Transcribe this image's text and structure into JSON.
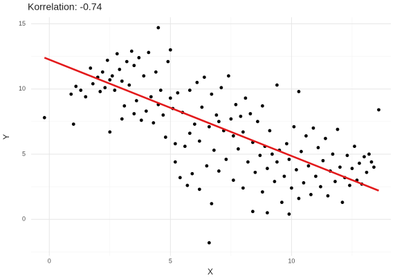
{
  "chart_data": {
    "type": "scatter",
    "title": "Korrelation:  -0.74",
    "xlabel": "X",
    "ylabel": "Y",
    "x": [
      0.9,
      1.0,
      1.1,
      1.3,
      1.5,
      1.7,
      1.8,
      2.0,
      2.1,
      2.2,
      2.3,
      2.4,
      2.5,
      2.5,
      2.6,
      2.7,
      2.8,
      2.9,
      3.0,
      3.0,
      3.1,
      3.2,
      3.3,
      3.4,
      3.5,
      3.5,
      3.6,
      3.7,
      3.8,
      3.9,
      4.0,
      4.1,
      4.2,
      4.3,
      4.4,
      4.5,
      4.5,
      4.6,
      4.7,
      4.8,
      4.9,
      5.0,
      5.0,
      5.1,
      5.2,
      5.2,
      5.3,
      5.4,
      5.5,
      5.6,
      5.7,
      5.8,
      5.8,
      5.9,
      6.0,
      6.1,
      6.2,
      6.2,
      6.3,
      6.4,
      6.5,
      6.6,
      6.6,
      6.7,
      6.7,
      6.8,
      6.9,
      7.0,
      7.0,
      7.1,
      7.2,
      7.3,
      7.4,
      7.5,
      7.6,
      7.6,
      7.7,
      7.8,
      7.9,
      8.0,
      8.0,
      8.1,
      8.2,
      8.3,
      8.4,
      8.4,
      8.5,
      8.6,
      8.7,
      8.8,
      8.8,
      8.9,
      9.0,
      9.0,
      9.1,
      9.2,
      9.3,
      9.4,
      9.4,
      9.5,
      9.6,
      9.7,
      9.8,
      9.9,
      9.9,
      10.0,
      10.1,
      10.2,
      10.3,
      10.3,
      10.4,
      10.5,
      10.6,
      10.7,
      10.8,
      10.9,
      11.0,
      11.1,
      11.2,
      11.3,
      11.4,
      11.5,
      11.6,
      11.7,
      11.8,
      11.9,
      12.0,
      12.1,
      12.2,
      12.3,
      12.4,
      12.5,
      12.6,
      12.7,
      12.8,
      12.9,
      13.0,
      13.1,
      13.2,
      13.3,
      13.4,
      13.6,
      -0.2
    ],
    "values": [
      9.6,
      7.3,
      10.2,
      9.9,
      9.4,
      11.6,
      10.4,
      10.9,
      9.8,
      11.3,
      10.1,
      12.2,
      10.7,
      6.7,
      11.0,
      9.9,
      12.7,
      11.5,
      10.6,
      7.7,
      8.7,
      12.1,
      10.3,
      12.9,
      11.8,
      8.1,
      9.1,
      12.4,
      7.6,
      11.0,
      8.3,
      12.8,
      9.4,
      7.4,
      11.3,
      14.7,
      8.8,
      9.9,
      8.0,
      6.3,
      12.1,
      13.0,
      9.3,
      8.5,
      5.8,
      4.4,
      9.7,
      3.2,
      8.2,
      5.6,
      2.6,
      6.6,
      9.9,
      3.5,
      7.3,
      10.5,
      2.3,
      6.0,
      8.6,
      10.9,
      4.1,
      -1.8,
      7.1,
      1.2,
      9.6,
      5.3,
      8.0,
      3.7,
      7.5,
      10.1,
      6.8,
      4.6,
      11.0,
      7.7,
      3.0,
      6.4,
      8.8,
      5.4,
      7.9,
      2.4,
      6.7,
      9.3,
      4.4,
      8.1,
      0.6,
      5.9,
      3.6,
      7.5,
      4.9,
      2.1,
      8.7,
      5.6,
      0.5,
      3.9,
      6.8,
      5.0,
      2.9,
      10.3,
      4.4,
      5.3,
      1.3,
      3.3,
      5.8,
      0.4,
      4.6,
      2.4,
      7.1,
      3.8,
      9.8,
      1.6,
      5.2,
      2.8,
      6.4,
      4.1,
      1.9,
      7.0,
      3.3,
      5.5,
      2.5,
      4.5,
      6.2,
      1.8,
      3.7,
      5.0,
      2.9,
      6.9,
      4.0,
      1.3,
      3.2,
      4.9,
      2.6,
      3.9,
      5.6,
      3.0,
      4.3,
      2.7,
      4.8,
      3.6,
      5.0,
      4.4,
      4.0,
      8.4,
      7.8
    ],
    "color": "#000000",
    "line": {
      "x": [
        -0.2,
        13.6
      ],
      "y": [
        12.4,
        2.2
      ],
      "color": "#e31a1c"
    },
    "xlim": [
      -0.75,
      14.1
    ],
    "ylim": [
      -2.8,
      15.5
    ],
    "xticks": [
      0,
      5,
      10
    ],
    "yticks": [
      0,
      5,
      10,
      15
    ],
    "xminor": [
      2.5,
      7.5,
      12.5
    ],
    "yminor": [
      -2.5,
      2.5,
      7.5,
      12.5
    ],
    "grid": true
  }
}
